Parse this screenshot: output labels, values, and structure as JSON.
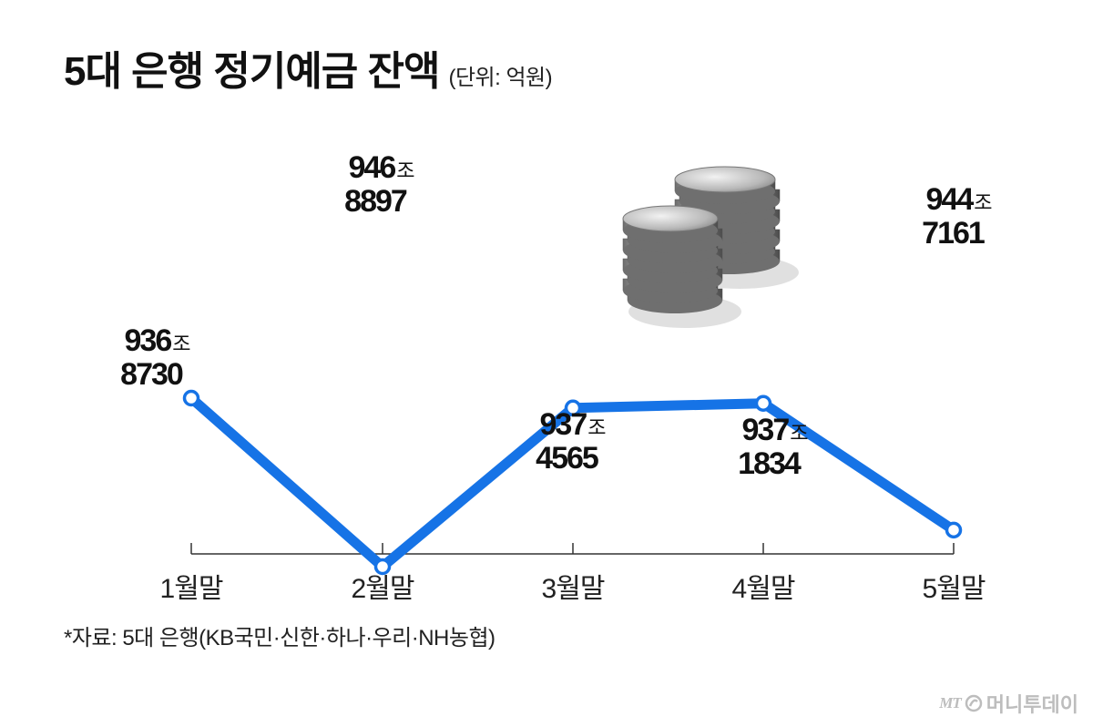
{
  "title": "5대 은행 정기예금 잔액",
  "unit_note": "(단위: 억원)",
  "footnote": "*자료: 5대 은행(KB국민·신한·하나·우리·NH농협)",
  "brand": {
    "mark": "MT",
    "name": "머니투데이"
  },
  "colors": {
    "line": "#1673e6",
    "marker_fill": "#ffffff",
    "text": "#111111",
    "axis": "#333333"
  },
  "icons": [
    "coin-stacks-illustration",
    "money-swirl-icon"
  ],
  "chart_data": {
    "type": "line",
    "categories": [
      "1월말",
      "2월말",
      "3월말",
      "4월말",
      "5월말"
    ],
    "values": [
      9368730,
      9468897,
      9374565,
      9371834,
      9447161
    ],
    "data_labels": [
      {
        "major": "936",
        "unit": "조",
        "minor": "8730",
        "position": "above"
      },
      {
        "major": "946",
        "unit": "조",
        "minor": "8897",
        "position": "above"
      },
      {
        "major": "937",
        "unit": "조",
        "minor": "4565",
        "position": "below"
      },
      {
        "major": "937",
        "unit": "조",
        "minor": "1834",
        "position": "below"
      },
      {
        "major": "944",
        "unit": "조",
        "minor": "7161",
        "position": "above"
      }
    ],
    "title": "5대 은행 정기예금 잔액",
    "xlabel": "",
    "ylabel": "",
    "grid": false,
    "legend": "none"
  }
}
